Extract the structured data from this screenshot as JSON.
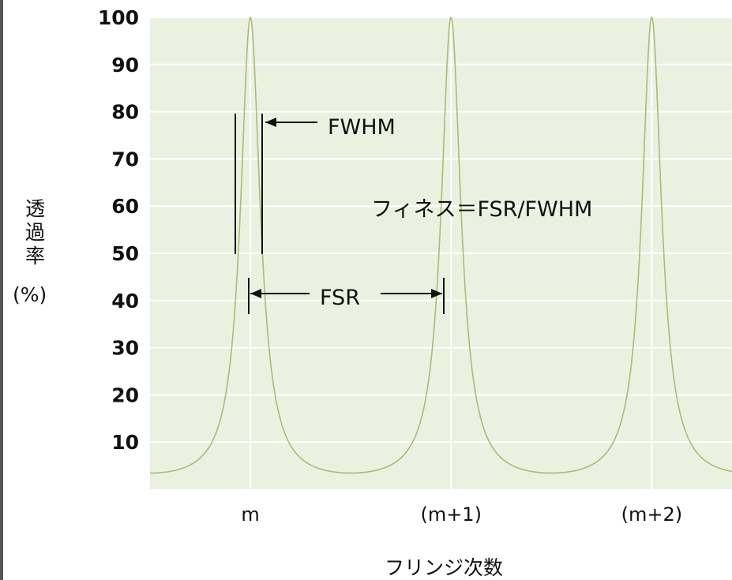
{
  "chart_data": {
    "type": "line",
    "title": "",
    "xlabel": "フリンジ次数",
    "ylabel_chars": [
      "透",
      "過",
      "率"
    ],
    "ylabel_unit": "(%)",
    "ylim": [
      0,
      100
    ],
    "yticks": [
      10,
      20,
      30,
      40,
      50,
      60,
      70,
      80,
      90,
      100
    ],
    "x_tick_labels": [
      "m",
      "(m+1)",
      "(m+2)"
    ],
    "peak_orders": [
      0,
      1,
      2
    ],
    "xlim": [
      -0.5,
      2.4
    ],
    "peak_value": 100,
    "fwhm_orders": 0.12,
    "grid": true,
    "annotations": {
      "fwhm": "FWHM",
      "finesse": "フィネス＝FSR/FWHM",
      "fsr": "FSR"
    },
    "colors": {
      "plot_bg": "#ebf1e1",
      "grid": "#ffffff",
      "curve": "#a8bd72",
      "text": "#111111",
      "arrow": "#111111"
    }
  }
}
